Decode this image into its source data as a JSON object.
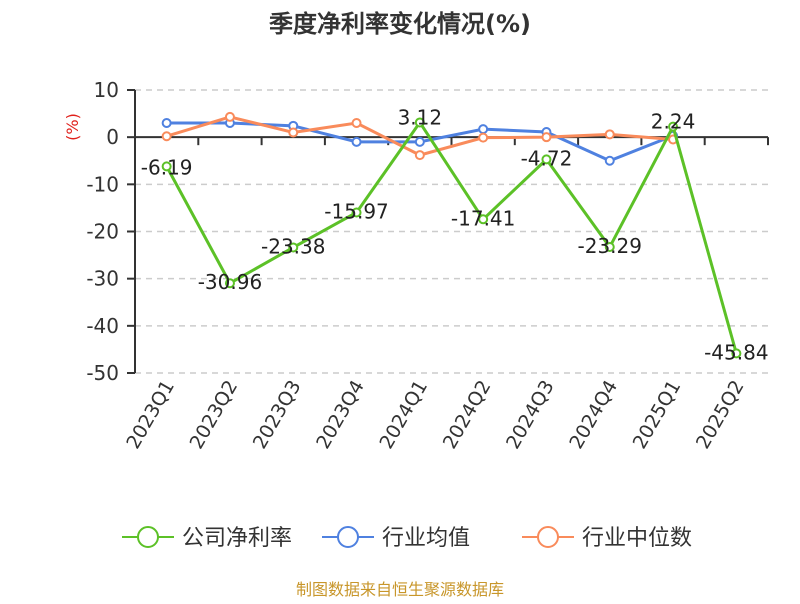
{
  "title": "季度净利率变化情况(%)",
  "yunit": "(%)",
  "footer": "制图数据来自恒生聚源数据库",
  "colors": {
    "company": "#5cc127",
    "avg": "#4f81e0",
    "median": "#f98b5b",
    "axis": "#333333",
    "grid": "#cccccc",
    "unit": "#e0201b",
    "footer": "#c8962a"
  },
  "legend": [
    {
      "label": "公司净利率",
      "color": "#5cc127"
    },
    {
      "label": "行业均值",
      "color": "#4f81e0"
    },
    {
      "label": "行业中位数",
      "color": "#f98b5b"
    }
  ],
  "chart_data": {
    "type": "line",
    "title": "季度净利率变化情况(%)",
    "xlabel": "",
    "ylabel": "(%)",
    "ylim": [
      -50,
      10
    ],
    "yticks": [
      10,
      0,
      -10,
      -20,
      -30,
      -40,
      -50
    ],
    "grid": true,
    "legend_position": "bottom",
    "categories": [
      "2023Q1",
      "2023Q2",
      "2023Q3",
      "2023Q4",
      "2024Q1",
      "2024Q2",
      "2024Q3",
      "2024Q4",
      "2025Q1",
      "2025Q2"
    ],
    "series": [
      {
        "name": "公司净利率",
        "values": [
          -6.19,
          -30.96,
          -23.38,
          -15.97,
          3.12,
          -17.41,
          -4.72,
          -23.29,
          2.24,
          -45.84
        ],
        "labels": [
          "-6.19",
          "-30.96",
          "-23.38",
          "-15.97",
          "3.12",
          "-17.41",
          "-4.72",
          "-23.29",
          "2.24",
          "-45.84"
        ]
      },
      {
        "name": "行业均值",
        "values": [
          3.0,
          3.0,
          2.4,
          -1.0,
          -1.0,
          1.7,
          1.1,
          -5.0,
          0.3,
          null
        ]
      },
      {
        "name": "行业中位数",
        "values": [
          0.2,
          4.3,
          1.0,
          3.0,
          -3.8,
          -0.1,
          0.0,
          0.6,
          -0.5,
          null
        ]
      }
    ]
  }
}
